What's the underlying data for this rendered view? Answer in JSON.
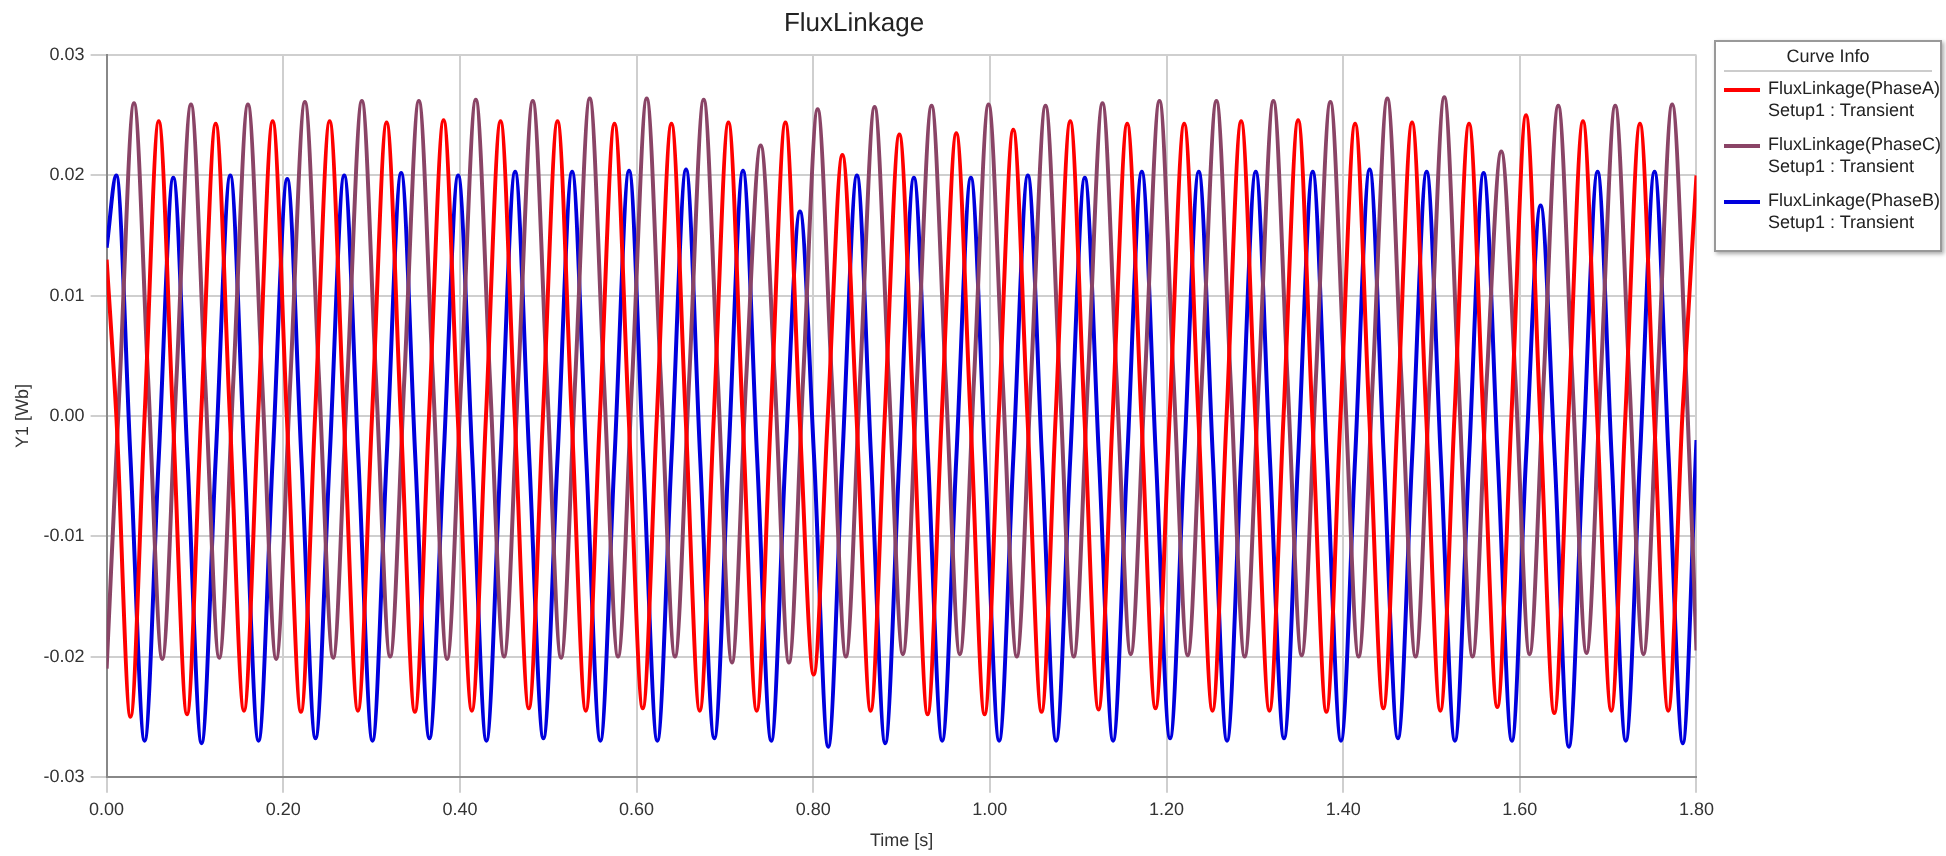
{
  "chart_data": {
    "type": "line",
    "title": "FluxLinkage",
    "xlabel": "Time [s]",
    "ylabel": "Y1 [Wb]",
    "legend_title": "Curve Info",
    "xlim": [
      0,
      1.8
    ],
    "xticks": [
      {
        "value": 0,
        "label": "0.00"
      },
      {
        "value": 0.2,
        "label": "0.20"
      },
      {
        "value": 0.4,
        "label": "0.40"
      },
      {
        "value": 0.6,
        "label": "0.60"
      },
      {
        "value": 0.8,
        "label": "0.80"
      },
      {
        "value": 1.0,
        "label": "1.00"
      },
      {
        "value": 1.2,
        "label": "1.20"
      },
      {
        "value": 1.4,
        "label": "1.40"
      },
      {
        "value": 1.6,
        "label": "1.60"
      },
      {
        "value": 1.8,
        "label": "1.80"
      }
    ],
    "ylim": [
      -0.03,
      0.03
    ],
    "yticks": [
      -0.03,
      -0.02,
      -0.01,
      {
        "value": 0,
        "label": "0.00"
      },
      0.01,
      0.02,
      0.03
    ],
    "grid": true,
    "legend": "top right",
    "marker": "none",
    "line_style": "solid",
    "series": [
      {
        "name": "FluxLinkage(PhaseA)\nSetup1 : Transient",
        "color": "#ff0000",
        "x": [
          0,
          0.011,
          0.027,
          0.043,
          0.059,
          0.075,
          0.091,
          0.107,
          0.1235,
          0.1395,
          0.1555,
          0.1715,
          0.188,
          0.204,
          0.22,
          0.236,
          0.2525,
          0.2685,
          0.2845,
          0.3005,
          0.317,
          0.333,
          0.349,
          0.365,
          0.3815,
          0.3975,
          0.4135,
          0.4295,
          0.446,
          0.462,
          0.478,
          0.494,
          0.5105,
          0.5265,
          0.5425,
          0.5585,
          0.575,
          0.591,
          0.607,
          0.623,
          0.6395,
          0.6555,
          0.6715,
          0.6875,
          0.704,
          0.72,
          0.736,
          0.752,
          0.7685,
          0.7845,
          0.8005,
          0.8165,
          0.833,
          0.849,
          0.865,
          0.881,
          0.8975,
          0.9135,
          0.9295,
          0.9455,
          0.962,
          0.978,
          0.994,
          1.01,
          1.0265,
          1.0425,
          1.0585,
          1.0745,
          1.091,
          1.107,
          1.123,
          1.139,
          1.1555,
          1.1715,
          1.1875,
          1.2035,
          1.22,
          1.236,
          1.252,
          1.268,
          1.2845,
          1.3005,
          1.3165,
          1.3325,
          1.349,
          1.365,
          1.381,
          1.397,
          1.4135,
          1.4295,
          1.4455,
          1.4615,
          1.478,
          1.494,
          1.51,
          1.526,
          1.5425,
          1.5585,
          1.5745,
          1.5905,
          1.607,
          1.623,
          1.639,
          1.655,
          1.6715,
          1.6875,
          1.7035,
          1.7195,
          1.736,
          1.752,
          1.768,
          1.784,
          1.8
        ],
        "values": [
          0.013,
          0,
          -0.025,
          0,
          0.0245,
          0,
          -0.0248,
          0,
          0.0243,
          0,
          -0.0245,
          0,
          0.0245,
          0,
          -0.0246,
          0,
          0.0245,
          0,
          -0.0245,
          0,
          0.0244,
          0,
          -0.0246,
          0,
          0.0246,
          0,
          -0.0245,
          0,
          0.0245,
          0,
          -0.0243,
          0,
          0.0245,
          0,
          -0.0245,
          0,
          0.0243,
          0,
          -0.0243,
          0,
          0.0243,
          0,
          -0.0245,
          0,
          0.0244,
          0,
          -0.0245,
          0,
          0.0244,
          0,
          -0.0215,
          0,
          0.0217,
          0,
          -0.0245,
          0,
          0.0234,
          0,
          -0.0248,
          0,
          0.0235,
          0,
          -0.0248,
          0,
          0.0238,
          0,
          -0.0246,
          0,
          0.0245,
          0,
          -0.0244,
          0,
          0.0243,
          0,
          -0.0243,
          0,
          0.0243,
          0,
          -0.0245,
          0,
          0.0245,
          0,
          -0.0245,
          0,
          0.0246,
          0,
          -0.0246,
          0,
          0.0243,
          0,
          -0.0243,
          0,
          0.0244,
          0,
          -0.0245,
          0,
          0.0243,
          0,
          -0.0242,
          0,
          0.025,
          0,
          -0.0247,
          0,
          0.0245,
          0,
          -0.0245,
          0,
          0.0243,
          0,
          -0.0245,
          0,
          0.02
        ]
      },
      {
        "name": "FluxLinkage(PhaseC)\nSetup1 : Transient",
        "color": "#8a4466",
        "x": [
          0,
          0.015,
          0.031,
          0.047,
          0.063,
          0.079,
          0.0955,
          0.1115,
          0.1275,
          0.1435,
          0.16,
          0.176,
          0.192,
          0.208,
          0.2245,
          0.2405,
          0.2565,
          0.2725,
          0.289,
          0.305,
          0.321,
          0.337,
          0.3535,
          0.3695,
          0.3855,
          0.4015,
          0.418,
          0.434,
          0.45,
          0.466,
          0.4825,
          0.4985,
          0.5145,
          0.5305,
          0.547,
          0.563,
          0.579,
          0.595,
          0.6115,
          0.6275,
          0.6435,
          0.6595,
          0.676,
          0.692,
          0.708,
          0.724,
          0.7405,
          0.7565,
          0.7725,
          0.7885,
          0.805,
          0.821,
          0.837,
          0.853,
          0.8695,
          0.8855,
          0.9015,
          0.9175,
          0.934,
          0.95,
          0.966,
          0.982,
          0.9985,
          1.0145,
          1.0305,
          1.0465,
          1.063,
          1.079,
          1.095,
          1.111,
          1.1275,
          1.1435,
          1.1595,
          1.1755,
          1.192,
          1.208,
          1.224,
          1.24,
          1.2565,
          1.2725,
          1.2885,
          1.3045,
          1.321,
          1.337,
          1.353,
          1.369,
          1.3855,
          1.4015,
          1.4175,
          1.4335,
          1.45,
          1.466,
          1.482,
          1.498,
          1.5145,
          1.5305,
          1.5465,
          1.5625,
          1.579,
          1.595,
          1.611,
          1.627,
          1.6435,
          1.6595,
          1.6755,
          1.6915,
          1.708,
          1.724,
          1.74,
          1.756,
          1.7725,
          1.7885,
          1.8
        ],
        "values": [
          -0.021,
          0.003,
          0.026,
          0.003,
          -0.0202,
          0.003,
          0.0259,
          0.003,
          -0.0201,
          0.003,
          0.0259,
          0.003,
          -0.0202,
          0.003,
          0.0261,
          0.003,
          -0.0201,
          0.003,
          0.0262,
          0.003,
          -0.02,
          0.003,
          0.0262,
          0.003,
          -0.0202,
          0.003,
          0.0263,
          0.003,
          -0.02,
          0.003,
          0.0262,
          0.003,
          -0.0201,
          0.003,
          0.0264,
          0.003,
          -0.02,
          0.003,
          0.0264,
          0.003,
          -0.02,
          0.003,
          0.0263,
          0.003,
          -0.0205,
          0.003,
          0.0225,
          0.003,
          -0.0205,
          0.003,
          0.0255,
          0.003,
          -0.02,
          0.003,
          0.0257,
          0.003,
          -0.0198,
          0.003,
          0.0258,
          0.003,
          -0.0198,
          0.003,
          0.0259,
          0.003,
          -0.02,
          0.003,
          0.0258,
          0.003,
          -0.02,
          0.003,
          0.026,
          0.003,
          -0.0198,
          0.003,
          0.0262,
          0.003,
          -0.0199,
          0.003,
          0.0262,
          0.003,
          -0.02,
          0.003,
          0.0262,
          0.003,
          -0.0199,
          0.003,
          0.0261,
          0.003,
          -0.02,
          0.003,
          0.0264,
          0.003,
          -0.02,
          0.003,
          0.0265,
          0.003,
          -0.02,
          0.003,
          0.022,
          0.003,
          -0.0198,
          0.003,
          0.0258,
          0.003,
          -0.0197,
          0.003,
          0.0258,
          0.003,
          -0.0198,
          0.003,
          0.0259,
          0.003,
          -0.0195
        ]
      },
      {
        "name": "FluxLinkage(PhaseB)\nSetup1 : Transient",
        "color": "#0000dd",
        "x": [
          0,
          0.011,
          0.027,
          0.043,
          0.059,
          0.0755,
          0.0915,
          0.1075,
          0.1235,
          0.14,
          0.156,
          0.172,
          0.188,
          0.2045,
          0.2205,
          0.2365,
          0.2525,
          0.269,
          0.285,
          0.301,
          0.317,
          0.3335,
          0.3495,
          0.3655,
          0.3815,
          0.398,
          0.414,
          0.43,
          0.446,
          0.4625,
          0.4785,
          0.4945,
          0.5105,
          0.527,
          0.543,
          0.559,
          0.575,
          0.5915,
          0.6075,
          0.6235,
          0.6395,
          0.656,
          0.672,
          0.688,
          0.704,
          0.7205,
          0.7365,
          0.7525,
          0.7685,
          0.785,
          0.801,
          0.817,
          0.833,
          0.8495,
          0.8655,
          0.8815,
          0.8975,
          0.914,
          0.93,
          0.946,
          0.962,
          0.9785,
          0.9945,
          1.0105,
          1.0265,
          1.043,
          1.059,
          1.075,
          1.091,
          1.1075,
          1.1235,
          1.1395,
          1.1555,
          1.172,
          1.188,
          1.204,
          1.22,
          1.2365,
          1.2525,
          1.2685,
          1.2845,
          1.301,
          1.317,
          1.333,
          1.349,
          1.3655,
          1.3815,
          1.3975,
          1.4135,
          1.43,
          1.446,
          1.462,
          1.478,
          1.4945,
          1.5105,
          1.5265,
          1.5425,
          1.559,
          1.575,
          1.591,
          1.607,
          1.6235,
          1.6395,
          1.6555,
          1.6715,
          1.688,
          1.704,
          1.72,
          1.736,
          1.7525,
          1.7685,
          1.7845,
          1.8
        ],
        "values": [
          0.014,
          0.02,
          -0.0035,
          -0.027,
          -0.0035,
          0.0198,
          -0.0035,
          -0.0272,
          -0.0035,
          0.02,
          -0.0035,
          -0.027,
          -0.0035,
          0.0197,
          -0.0035,
          -0.0268,
          -0.0035,
          0.02,
          -0.0035,
          -0.027,
          -0.0035,
          0.0202,
          -0.0035,
          -0.0268,
          -0.0035,
          0.02,
          -0.0035,
          -0.027,
          -0.0035,
          0.0203,
          -0.0035,
          -0.0268,
          -0.0035,
          0.0203,
          -0.0035,
          -0.027,
          -0.0035,
          0.0204,
          -0.0035,
          -0.027,
          -0.0035,
          0.0205,
          -0.0035,
          -0.0268,
          -0.0035,
          0.0204,
          -0.0035,
          -0.027,
          -0.0035,
          0.017,
          -0.0035,
          -0.0275,
          -0.0035,
          0.02,
          -0.0035,
          -0.0272,
          -0.0035,
          0.0198,
          -0.0035,
          -0.027,
          -0.0035,
          0.0198,
          -0.0035,
          -0.027,
          -0.0035,
          0.02,
          -0.0035,
          -0.027,
          -0.0035,
          0.0198,
          -0.0035,
          -0.027,
          -0.0035,
          0.0203,
          -0.0035,
          -0.0268,
          -0.0035,
          0.0203,
          -0.0035,
          -0.027,
          -0.0035,
          0.0203,
          -0.0035,
          -0.0268,
          -0.0035,
          0.0203,
          -0.0035,
          -0.027,
          -0.0035,
          0.0205,
          -0.0035,
          -0.0268,
          -0.0035,
          0.0203,
          -0.0035,
          -0.027,
          -0.0035,
          0.0202,
          -0.0035,
          -0.027,
          -0.0035,
          0.0175,
          -0.0035,
          -0.0275,
          -0.0035,
          0.0203,
          -0.0035,
          -0.027,
          -0.0035,
          0.0203,
          -0.0035,
          -0.0272,
          -0.002
        ]
      }
    ]
  }
}
